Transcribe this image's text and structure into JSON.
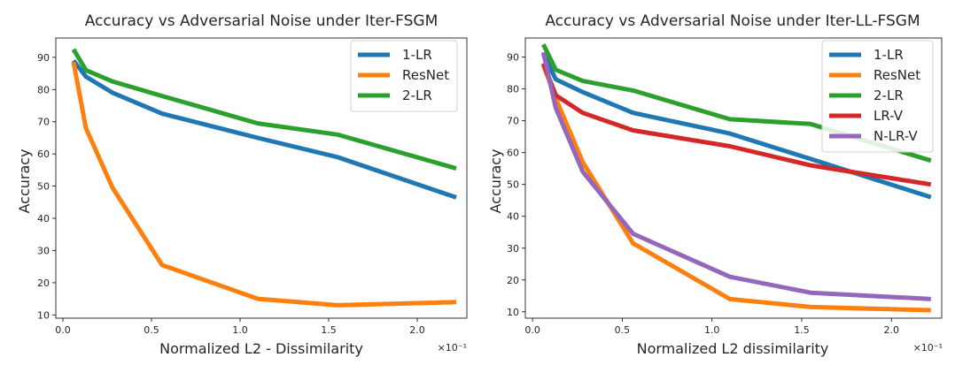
{
  "chart_data": [
    {
      "type": "line",
      "title": "Accuracy vs Adversarial Noise under Iter-FSGM",
      "xlabel": "Normalized L2 - Dissimilarity",
      "ylabel": "Accuracy",
      "x_offset_label": "×10⁻¹",
      "xlim": [
        -0.04,
        2.28
      ],
      "ylim": [
        9,
        96
      ],
      "xticks": [
        0.0,
        0.5,
        1.0,
        1.5,
        2.0
      ],
      "xtick_labels": [
        "0.0",
        "0.5",
        "1.0",
        "1.5",
        "2.0"
      ],
      "yticks": [
        10,
        20,
        30,
        40,
        50,
        60,
        70,
        80,
        90
      ],
      "ytick_labels": [
        "10",
        "20",
        "30",
        "40",
        "50",
        "60",
        "70",
        "80",
        "90"
      ],
      "grid": false,
      "legend_position": "top-right",
      "series": [
        {
          "name": "1-LR",
          "color": "#1f77b4",
          "x": [
            0.06,
            0.13,
            0.28,
            0.56,
            1.1,
            1.55,
            2.22
          ],
          "y": [
            89,
            84,
            79,
            72.5,
            65,
            59,
            46.5
          ]
        },
        {
          "name": "ResNet",
          "color": "#ff7f0e",
          "x": [
            0.06,
            0.13,
            0.28,
            0.56,
            1.1,
            1.55,
            2.22
          ],
          "y": [
            88.5,
            68,
            49.5,
            25.5,
            15,
            13,
            14
          ]
        },
        {
          "name": "2-LR",
          "color": "#2ca02c",
          "x": [
            0.06,
            0.13,
            0.28,
            0.56,
            1.1,
            1.55,
            2.22
          ],
          "y": [
            92.5,
            86,
            82.5,
            78,
            69.5,
            66,
            55.5
          ]
        }
      ]
    },
    {
      "type": "line",
      "title": "Accuracy vs Adversarial Noise under  Iter-LL-FSGM",
      "xlabel": "Normalized L2 dissimilarity",
      "ylabel": "Accuracy",
      "x_offset_label": "×10⁻¹",
      "xlim": [
        -0.04,
        2.28
      ],
      "ylim": [
        8,
        96
      ],
      "xticks": [
        0.0,
        0.5,
        1.0,
        1.5,
        2.0
      ],
      "xtick_labels": [
        "0.0",
        "0.5",
        "1.0",
        "1.5",
        "2.0"
      ],
      "yticks": [
        10,
        20,
        30,
        40,
        50,
        60,
        70,
        80,
        90
      ],
      "ytick_labels": [
        "10",
        "20",
        "30",
        "40",
        "50",
        "60",
        "70",
        "80",
        "90"
      ],
      "grid": false,
      "legend_position": "top-right",
      "series": [
        {
          "name": "1-LR",
          "color": "#1f77b4",
          "x": [
            0.06,
            0.13,
            0.28,
            0.56,
            1.1,
            1.55,
            2.22
          ],
          "y": [
            91,
            83,
            79,
            72.5,
            66,
            58,
            46
          ]
        },
        {
          "name": "ResNet",
          "color": "#ff7f0e",
          "x": [
            0.06,
            0.13,
            0.28,
            0.56,
            1.1,
            1.55,
            2.22
          ],
          "y": [
            87.5,
            77,
            57,
            31.5,
            14,
            11.5,
            10.5
          ]
        },
        {
          "name": "2-LR",
          "color": "#2ca02c",
          "x": [
            0.06,
            0.13,
            0.28,
            0.56,
            1.1,
            1.55,
            2.22
          ],
          "y": [
            94,
            86,
            82.5,
            79.5,
            70.5,
            69,
            57.5
          ]
        },
        {
          "name": "LR-V",
          "color": "#d62728",
          "x": [
            0.06,
            0.13,
            0.28,
            0.56,
            1.1,
            1.55,
            2.22
          ],
          "y": [
            88,
            78,
            72.5,
            67,
            62,
            56,
            50
          ]
        },
        {
          "name": "N-LR-V",
          "color": "#9467bd",
          "x": [
            0.06,
            0.13,
            0.28,
            0.56,
            1.1,
            1.55,
            2.22
          ],
          "y": [
            91.5,
            74,
            54,
            34.5,
            21,
            16,
            14
          ]
        }
      ]
    }
  ]
}
